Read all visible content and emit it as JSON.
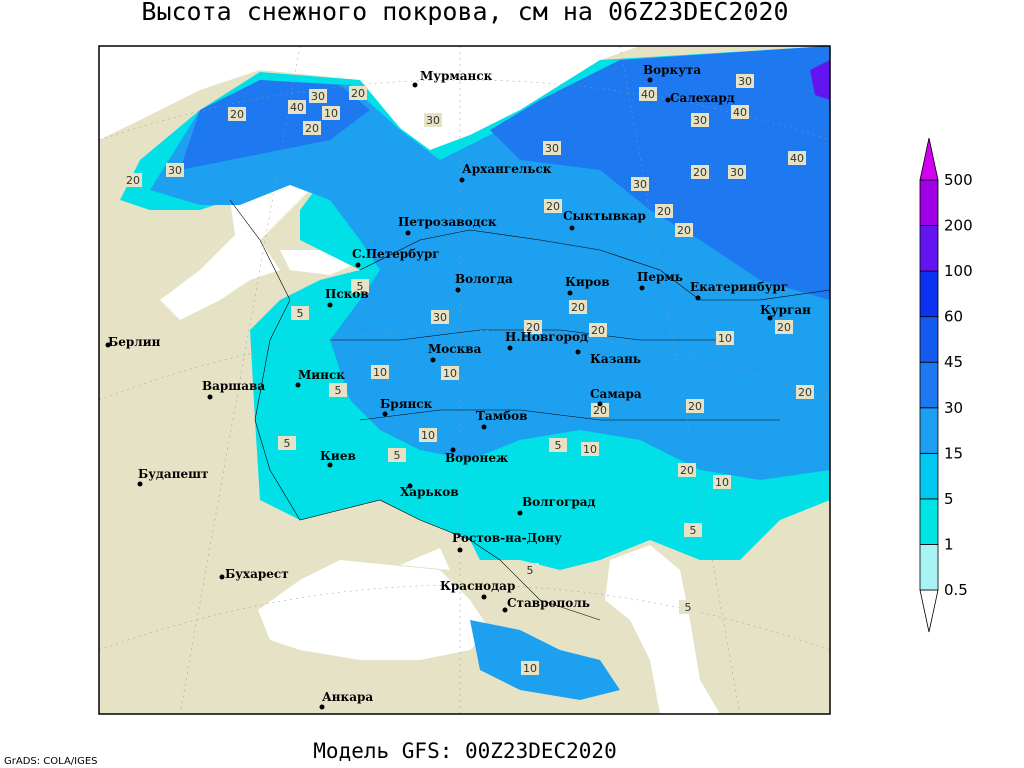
{
  "title": "Высота снежного покрова, см на 06Z23DEC2020",
  "subtitle": "Модель GFS: 00Z23DEC2020",
  "credit": "GrADS: COLA/IGES",
  "cities": [
    "Мурманск",
    "Воркута",
    "Салехард",
    "Архангельск",
    "Петрозаводск",
    "Сыктывкар",
    "С.Петербург",
    "Псков",
    "Вологда",
    "Киров",
    "Пермь",
    "Екатеринбург",
    "Курган",
    "Берлин",
    "Н.Новгород",
    "Москва",
    "Казань",
    "Минск",
    "Варшава",
    "Самара",
    "Брянск",
    "Тамбов",
    "Воронеж",
    "Киев",
    "Будапешт",
    "Харьков",
    "Волгоград",
    "Ростов-на-Дону",
    "Бухарест",
    "Краснодар",
    "Ставрополь",
    "Анкара"
  ],
  "contour_labels": [
    40,
    30,
    20,
    20,
    10,
    20,
    30,
    40,
    30,
    40,
    30,
    30,
    40,
    20,
    30,
    30,
    20,
    30,
    20,
    20,
    20,
    5,
    5,
    30,
    20,
    20,
    20,
    20,
    10,
    10,
    10,
    5,
    20,
    20,
    10,
    20,
    5,
    5,
    10,
    20,
    10,
    5,
    5,
    5,
    5,
    10
  ],
  "legend": {
    "levels": [
      0.5,
      1,
      5,
      15,
      30,
      45,
      60,
      100,
      200,
      500
    ],
    "colors": [
      "#ffffff",
      "#a8f4f4",
      "#00e4e4",
      "#00c8f0",
      "#1ea0f0",
      "#1e78f0",
      "#145af0",
      "#0a32f0",
      "#6414f0",
      "#a000e6",
      "#d200f0"
    ]
  }
}
